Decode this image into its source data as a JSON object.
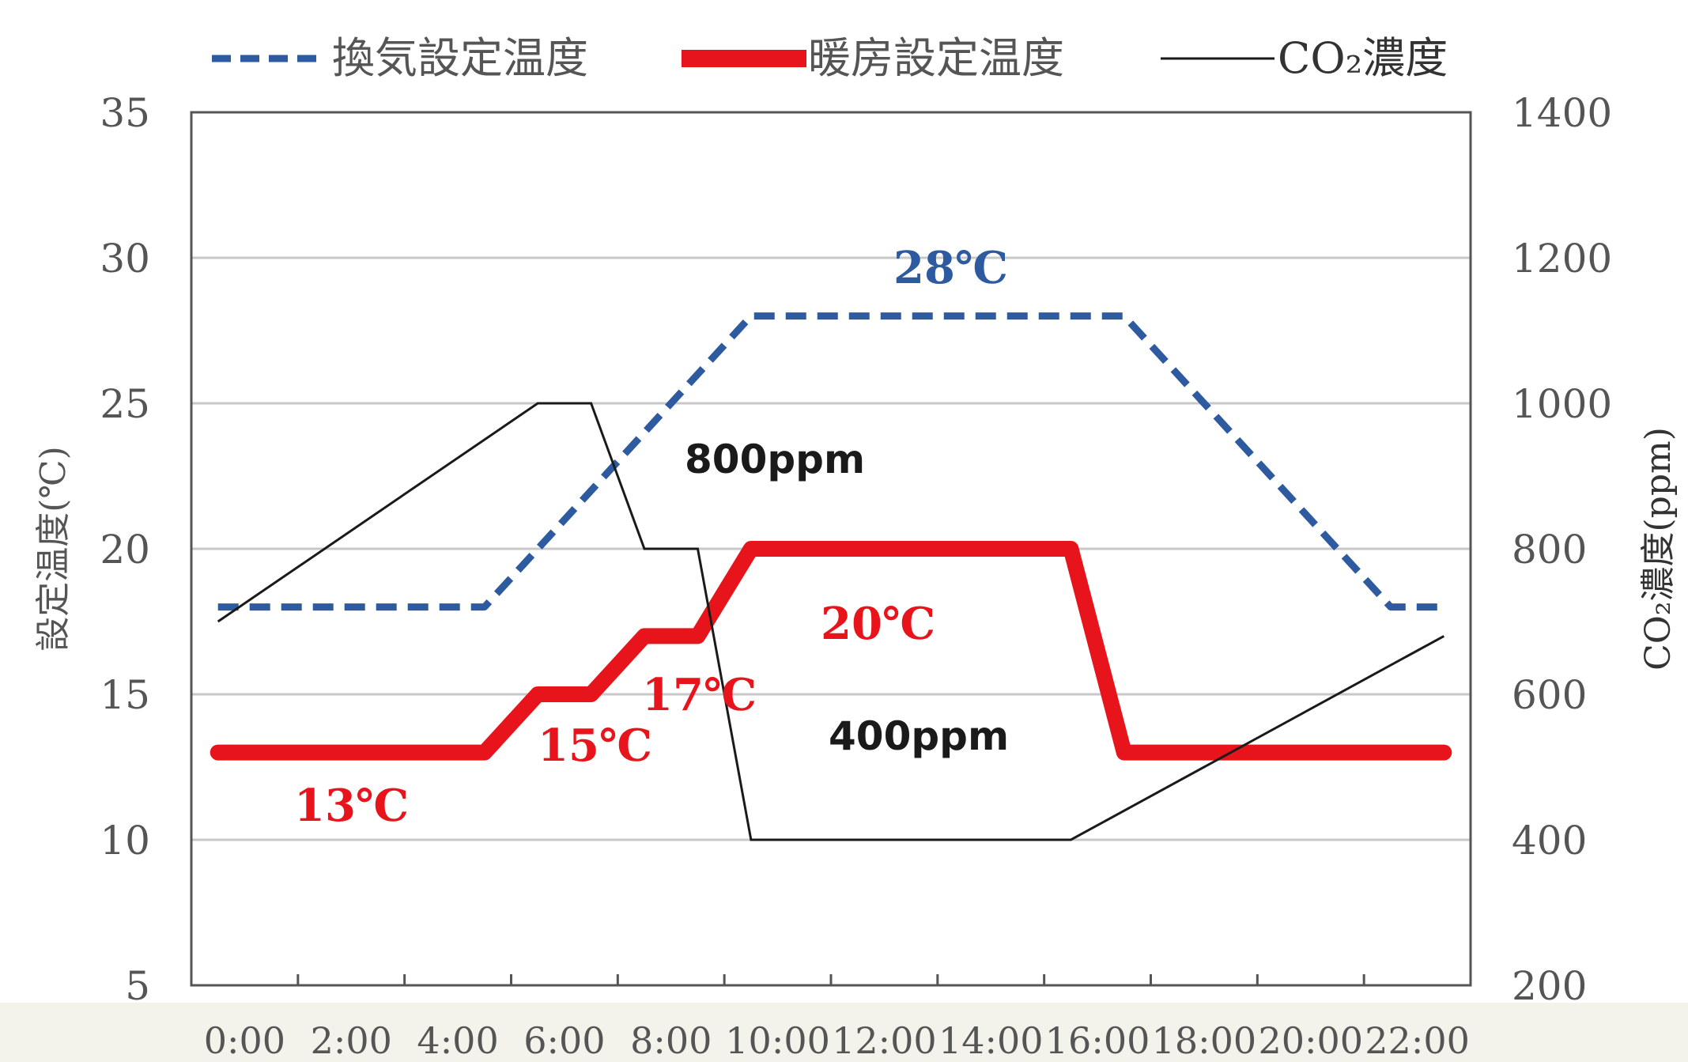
{
  "chart_data": {
    "type": "line",
    "legend": {
      "placement": "top",
      "items": [
        {
          "label": "換気設定温度",
          "style": "dashed",
          "color": "#2e5aa0"
        },
        {
          "label": "暖房設定温度",
          "style": "thick",
          "color": "#e8141c"
        },
        {
          "label": "CO₂濃度",
          "style": "thin",
          "color": "#1a1a1a"
        }
      ]
    },
    "ylabel": "設定温度(℃)",
    "y2label": "CO₂濃度(ppm)",
    "ylim": [
      5,
      35
    ],
    "y2lim": [
      200,
      1400
    ],
    "yticks": [
      "5",
      "10",
      "15",
      "20",
      "25",
      "30",
      "35"
    ],
    "y2ticks": [
      "200",
      "400",
      "600",
      "800",
      "1000",
      "1200",
      "1400"
    ],
    "xlim": [
      -1,
      23
    ],
    "xticks": [
      "0:00",
      "2:00",
      "4:00",
      "6:00",
      "8:00",
      "10:00",
      "12:00",
      "14:00",
      "16:00",
      "18:00",
      "20:00",
      "22:00"
    ],
    "grid": true,
    "series": [
      {
        "name": "換気設定温度",
        "axis": "left",
        "color": "#2e5aa0",
        "x": [
          -0.5,
          4.5,
          9.5,
          16.5,
          21.5,
          22.5
        ],
        "y": [
          18,
          18,
          28,
          28,
          18,
          18
        ]
      },
      {
        "name": "暖房設定温度",
        "axis": "left",
        "color": "#e8141c",
        "x": [
          -0.5,
          4.5,
          5.5,
          6.5,
          7.5,
          8.5,
          9.5,
          15.5,
          16.5,
          22.5
        ],
        "y": [
          13,
          13,
          15,
          15,
          17,
          17,
          20,
          20,
          13,
          13
        ]
      },
      {
        "name": "CO₂濃度",
        "axis": "right",
        "color": "#1a1a1a",
        "x": [
          -0.5,
          5.5,
          6.5,
          7.5,
          8.5,
          9.5,
          15.5,
          22.5
        ],
        "y": [
          700,
          1000,
          1000,
          800,
          800,
          400,
          400,
          680
        ]
      }
    ],
    "annotations": [
      {
        "text": "28℃",
        "color": "#2e5aa0"
      },
      {
        "text": "20℃",
        "color": "#e8141c"
      },
      {
        "text": "17℃",
        "color": "#e8141c"
      },
      {
        "text": "15℃",
        "color": "#e8141c"
      },
      {
        "text": "13℃",
        "color": "#e8141c"
      },
      {
        "text": "800ppm",
        "color": "#1a1a1a"
      },
      {
        "text": "400ppm",
        "color": "#1a1a1a"
      }
    ]
  }
}
